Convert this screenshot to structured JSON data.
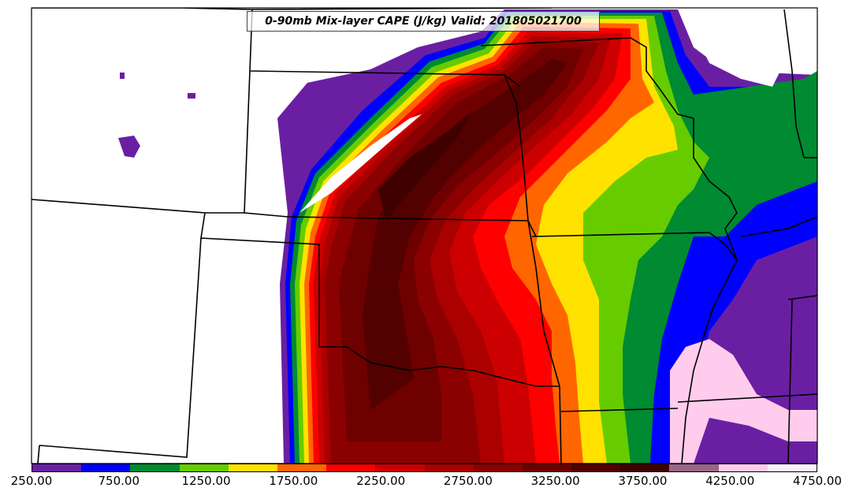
{
  "title": "0-90mb Mix-layer CAPE (J/kg) Valid: 201805021700",
  "legend": {
    "colors": [
      "#6a1fa3",
      "#0000ff",
      "#008a32",
      "#66cc00",
      "#ffe200",
      "#ff6600",
      "#ff0000",
      "#cc0000",
      "#aa0000",
      "#8b0000",
      "#6e0000",
      "#520000",
      "#3f0000",
      "#996688",
      "#ffccee",
      "#ffeeff"
    ],
    "tick_labels": [
      "250.00",
      "750.00",
      "1250.00",
      "1750.00",
      "2250.00",
      "2750.00",
      "3250.00",
      "3750.00",
      "4250.00",
      "4750.00"
    ]
  },
  "chart_data": {
    "type": "heatmap",
    "title": "0-90mb Mix-layer CAPE (J/kg) Valid: 201805021700",
    "variable": "0-90mb Mix-layer CAPE",
    "units": "J/kg",
    "valid_time": "201805021700",
    "colorbar_range": [
      250,
      4750
    ],
    "colorbar_ticks": [
      250,
      750,
      1250,
      1750,
      2250,
      2750,
      3250,
      3750,
      4250,
      4750
    ],
    "field_description": "Max CAPE core (~3250+) over central/eastern Kansas and Nebraska; sharp gradient on western edge; decreasing eastward through Missouri/Iowa"
  }
}
